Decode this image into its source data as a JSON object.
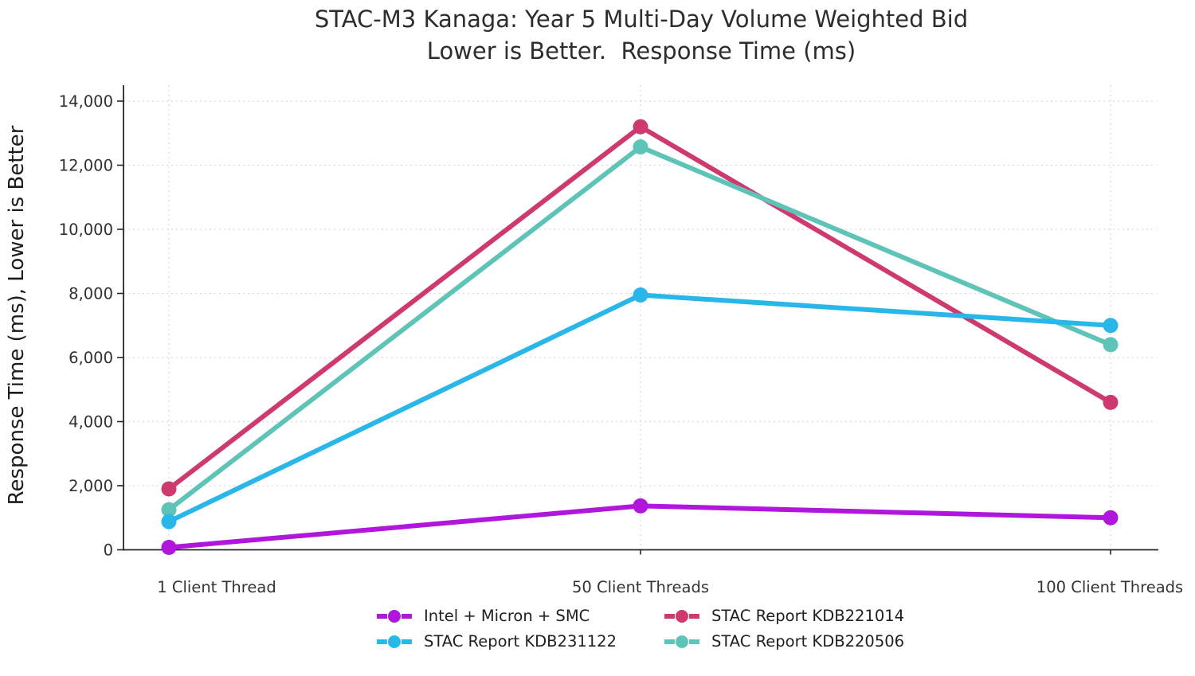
{
  "title": {
    "line1": "STAC-M3 Kanaga: Year 5 Multi-Day Volume Weighted Bid",
    "line2": "Lower is Better.  Response Time (ms)"
  },
  "chart_data": {
    "type": "line",
    "title": "STAC-M3 Kanaga: Year 5 Multi-Day Volume Weighted Bid — Lower is Better. Response Time (ms)",
    "categories": [
      "1 Client Thread",
      "50 Client Threads",
      "100 Client Threads"
    ],
    "series": [
      {
        "name": "Intel + Micron + SMC",
        "color": "#B016DB",
        "values": [
          75,
          1370,
          1000
        ]
      },
      {
        "name": "STAC Report KDB221014",
        "color": "#CE3A6F",
        "values": [
          1900,
          13200,
          4600
        ]
      },
      {
        "name": "STAC Report KDB231122",
        "color": "#29B6E9",
        "values": [
          880,
          7950,
          7000
        ]
      },
      {
        "name": "STAC Report KDB220506",
        "color": "#5FC4B8",
        "values": [
          1250,
          12570,
          6400
        ]
      }
    ],
    "xlabel": "",
    "ylabel": "Response Time (ms), Lower is Better",
    "ylim": [
      0,
      14000
    ],
    "ytick_step": 2000,
    "ytick_labels": [
      "0",
      "2,000",
      "4,000",
      "6,000",
      "8,000",
      "10,000",
      "12,000",
      "14,000"
    ],
    "grid": true,
    "gridline_color": "#d9d9d9",
    "axis_color": "#262626",
    "tick_label_color": "#303030",
    "legend_position": "bottom",
    "draw_order": [
      0,
      1,
      3,
      2
    ]
  }
}
